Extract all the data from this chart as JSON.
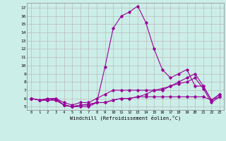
{
  "title": "",
  "xlabel": "Windchill (Refroidissement éolien,°C)",
  "x_ticks": [
    0,
    1,
    2,
    3,
    4,
    5,
    6,
    7,
    8,
    9,
    10,
    11,
    12,
    13,
    14,
    15,
    16,
    17,
    18,
    19,
    20,
    21,
    22,
    23
  ],
  "y_ticks": [
    5,
    6,
    7,
    8,
    9,
    10,
    11,
    12,
    13,
    14,
    15,
    16,
    17
  ],
  "ylim": [
    4.6,
    17.6
  ],
  "xlim": [
    -0.5,
    23.5
  ],
  "background_color": "#cceee8",
  "grid_color": "#bbbbbb",
  "line_color": "#990099",
  "series": [
    [
      6.0,
      5.8,
      6.0,
      6.0,
      5.2,
      5.0,
      5.2,
      5.3,
      5.5,
      9.8,
      14.5,
      16.0,
      16.5,
      17.2,
      15.2,
      12.0,
      9.5,
      8.5,
      9.0,
      9.5,
      7.5,
      7.5,
      5.8,
      6.5
    ],
    [
      6.0,
      5.8,
      5.8,
      6.0,
      5.5,
      5.2,
      5.5,
      5.5,
      6.0,
      6.5,
      7.0,
      7.0,
      7.0,
      7.0,
      7.0,
      7.0,
      7.0,
      7.5,
      8.0,
      8.5,
      9.0,
      7.5,
      5.8,
      6.5
    ],
    [
      6.0,
      5.8,
      5.8,
      5.8,
      5.2,
      5.0,
      5.2,
      5.2,
      5.5,
      5.5,
      5.8,
      6.0,
      6.0,
      6.2,
      6.2,
      6.2,
      6.2,
      6.2,
      6.2,
      6.2,
      6.2,
      6.2,
      5.8,
      6.2
    ],
    [
      6.0,
      5.8,
      5.8,
      5.8,
      5.2,
      5.0,
      5.0,
      5.0,
      5.5,
      5.5,
      5.8,
      6.0,
      6.0,
      6.2,
      6.5,
      7.0,
      7.2,
      7.5,
      7.8,
      8.0,
      8.5,
      7.2,
      5.5,
      6.2
    ]
  ],
  "figsize": [
    3.2,
    2.0
  ],
  "dpi": 100
}
